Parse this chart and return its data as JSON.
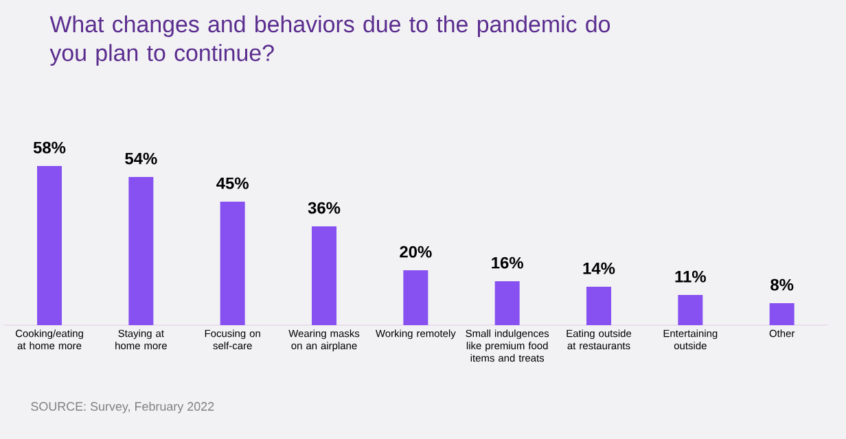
{
  "chart_data": {
    "type": "bar",
    "title": "What changes and behaviors due to the pandemic do you plan to continue?",
    "categories": [
      "Cooking/eating at home more",
      "Staying at home more",
      "Focusing on self-care",
      "Wearing masks on an airplane",
      "Working remotely",
      "Small indulgences like premium food items and treats",
      "Eating outside at restaurants",
      "Entertaining outside",
      "Other"
    ],
    "values": [
      58,
      54,
      45,
      36,
      20,
      16,
      14,
      11,
      8
    ],
    "value_labels": [
      "58%",
      "54%",
      "45%",
      "36%",
      "20%",
      "16%",
      "14%",
      "11%",
      "8%"
    ],
    "color": "#8651f0",
    "annotations": [
      "SOURCE: Survey, February 2022"
    ]
  }
}
